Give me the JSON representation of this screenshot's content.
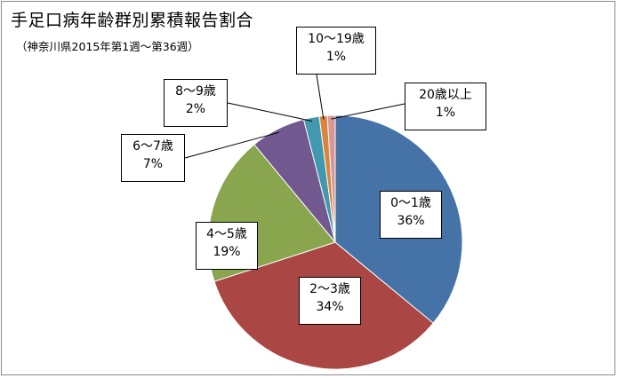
{
  "chart_data": {
    "type": "pie",
    "title": "手足口病年齢群別累積報告割合",
    "subtitle": "（神奈川県2015年第1週～第36週）",
    "categories": [
      "0～1歳",
      "2～3歳",
      "4～5歳",
      "6～7歳",
      "8～9歳",
      "10～19歳",
      "20歳以上"
    ],
    "values": [
      36,
      34,
      19,
      7,
      2,
      1,
      1
    ],
    "value_labels": [
      "36%",
      "34%",
      "19%",
      "7%",
      "2%",
      "1%",
      "1%"
    ],
    "colors": [
      "#4572A7",
      "#AA4643",
      "#89A54E",
      "#71588F",
      "#4198AF",
      "#DB843D",
      "#D99694"
    ],
    "legend": "none"
  }
}
